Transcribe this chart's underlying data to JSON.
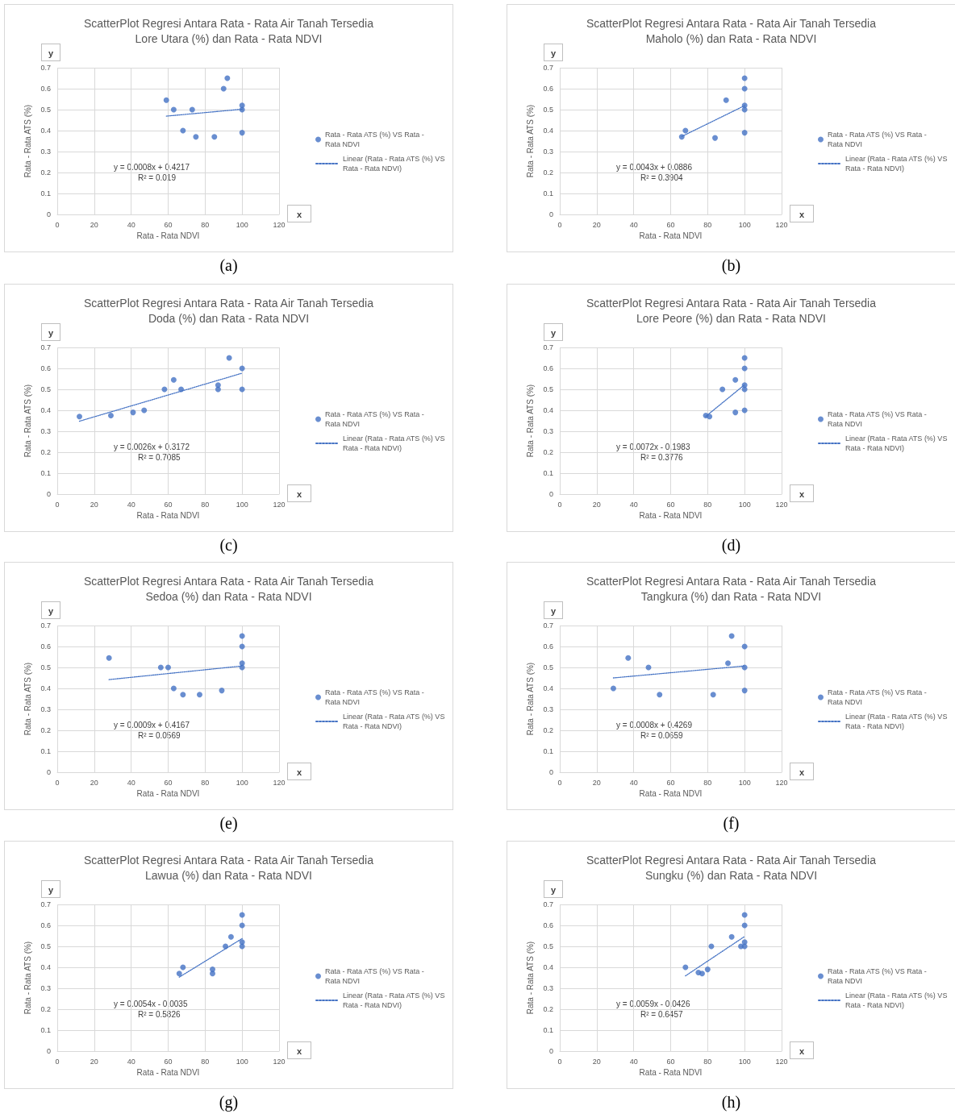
{
  "chart_data": [
    {
      "type": "scatter",
      "title": "ScatterPlot Regresi Antara Rata - Rata Air Tanah Tersedia\nLore Utara (%) dan Rata - Rata NDVI",
      "xlabel": "Rata - Rata NDVI",
      "ylabel": "Rata - Rata ATS (%)",
      "xlim": [
        0,
        120
      ],
      "xticks": [
        0,
        20,
        40,
        60,
        80,
        100,
        120
      ],
      "ylim": [
        0,
        0.7
      ],
      "yticks": [
        0,
        0.1,
        0.2,
        0.3,
        0.4,
        0.5,
        0.6,
        0.7
      ],
      "grid": true,
      "legend": "right",
      "series": [
        {
          "name": "Rata - Rata ATS (%) VS Rata - Rata NDVI",
          "color": "#4472c4",
          "marker": "circle",
          "x": [
            59,
            63,
            68,
            73,
            75,
            85,
            90,
            92,
            100,
            100,
            100
          ],
          "values": [
            0.545,
            0.5,
            0.4,
            0.5,
            0.37,
            0.37,
            0.6,
            0.65,
            0.52,
            0.5,
            0.39
          ]
        },
        {
          "name": "Linear (Rata - Rata ATS (%) VS Rata - Rata NDVI)",
          "type": "line",
          "color": "#4472c4",
          "line_style": "dotted",
          "x": [
            59,
            100
          ],
          "values": [
            0.469,
            0.502
          ]
        }
      ],
      "annotations": [
        "y",
        "x",
        "y = 0.0008x + 0.4217",
        "R² = 0.019",
        "(a)"
      ]
    },
    {
      "type": "scatter",
      "title": "ScatterPlot Regresi Antara Rata - Rata Air Tanah Tersedia\nMaholo (%) dan Rata - Rata NDVI",
      "xlabel": "Rata - Rata NDVI",
      "ylabel": "Rata - Rata ATS (%)",
      "xlim": [
        0,
        120
      ],
      "xticks": [
        0,
        20,
        40,
        60,
        80,
        100,
        120
      ],
      "ylim": [
        0,
        0.7
      ],
      "yticks": [
        0,
        0.1,
        0.2,
        0.3,
        0.4,
        0.5,
        0.6,
        0.7
      ],
      "grid": true,
      "legend": "right",
      "series": [
        {
          "name": "Rata - Rata ATS (%) VS Rata - Rata NDVI",
          "color": "#4472c4",
          "marker": "circle",
          "x": [
            66,
            68,
            84,
            90,
            100,
            100,
            100,
            100,
            100
          ],
          "values": [
            0.37,
            0.4,
            0.365,
            0.545,
            0.65,
            0.6,
            0.52,
            0.5,
            0.39
          ]
        },
        {
          "name": "Linear (Rata - Rata ATS (%) VS Rata - Rata NDVI)",
          "type": "line",
          "color": "#4472c4",
          "line_style": "dotted",
          "x": [
            66,
            100
          ],
          "values": [
            0.372,
            0.519
          ]
        }
      ],
      "annotations": [
        "y",
        "x",
        "y = 0.0043x + 0.0886",
        "R² = 0.3904",
        "(b)"
      ]
    },
    {
      "type": "scatter",
      "title": "ScatterPlot Regresi Antara Rata - Rata Air Tanah Tersedia\nDoda (%) dan Rata - Rata NDVI",
      "xlabel": "Rata - Rata NDVI",
      "ylabel": "Rata - Rata ATS (%)",
      "xlim": [
        0,
        120
      ],
      "xticks": [
        0,
        20,
        40,
        60,
        80,
        100,
        120
      ],
      "ylim": [
        0,
        0.7
      ],
      "yticks": [
        0,
        0.1,
        0.2,
        0.3,
        0.4,
        0.5,
        0.6,
        0.7
      ],
      "grid": true,
      "legend": "right",
      "series": [
        {
          "name": "Rata - Rata ATS (%) VS Rata - Rata NDVI",
          "color": "#4472c4",
          "marker": "circle",
          "x": [
            12,
            29,
            41,
            47,
            58,
            63,
            67,
            87,
            87,
            93,
            100,
            100
          ],
          "values": [
            0.37,
            0.375,
            0.39,
            0.4,
            0.5,
            0.545,
            0.5,
            0.52,
            0.5,
            0.65,
            0.6,
            0.5
          ]
        },
        {
          "name": "Linear (Rata - Rata ATS (%) VS Rata - Rata NDVI)",
          "type": "line",
          "color": "#4472c4",
          "line_style": "dotted",
          "x": [
            12,
            100
          ],
          "values": [
            0.348,
            0.577
          ]
        }
      ],
      "annotations": [
        "y",
        "x",
        "y = 0.0026x + 0.3172",
        "R² = 0.7085",
        "(c)"
      ]
    },
    {
      "type": "scatter",
      "title": "ScatterPlot Regresi Antara Rata - Rata Air Tanah Tersedia\nLore Peore (%) dan Rata - Rata NDVI",
      "xlabel": "Rata - Rata NDVI",
      "ylabel": "Rata - Rata ATS (%)",
      "xlim": [
        0,
        120
      ],
      "xticks": [
        0,
        20,
        40,
        60,
        80,
        100,
        120
      ],
      "ylim": [
        0,
        0.7
      ],
      "yticks": [
        0,
        0.1,
        0.2,
        0.3,
        0.4,
        0.5,
        0.6,
        0.7
      ],
      "grid": true,
      "legend": "right",
      "series": [
        {
          "name": "Rata - Rata ATS (%) VS Rata - Rata NDVI",
          "color": "#4472c4",
          "marker": "circle",
          "x": [
            79,
            81,
            88,
            95,
            95,
            100,
            100,
            100,
            100,
            100
          ],
          "values": [
            0.375,
            0.37,
            0.5,
            0.545,
            0.39,
            0.65,
            0.6,
            0.52,
            0.5,
            0.4
          ]
        },
        {
          "name": "Linear (Rata - Rata ATS (%) VS Rata - Rata NDVI)",
          "type": "line",
          "color": "#4472c4",
          "line_style": "dotted",
          "x": [
            79,
            100
          ],
          "values": [
            0.371,
            0.522
          ]
        }
      ],
      "annotations": [
        "y",
        "x",
        "y = 0.0072x - 0.1983",
        "R² = 0.3776",
        "(d)"
      ]
    },
    {
      "type": "scatter",
      "title": "ScatterPlot Regresi Antara Rata - Rata Air Tanah Tersedia\nSedoa (%) dan Rata - Rata NDVI",
      "xlabel": "Rata - Rata NDVI",
      "ylabel": "Rata - Rata ATS (%)",
      "xlim": [
        0,
        120
      ],
      "xticks": [
        0,
        20,
        40,
        60,
        80,
        100,
        120
      ],
      "ylim": [
        0,
        0.7
      ],
      "yticks": [
        0,
        0.1,
        0.2,
        0.3,
        0.4,
        0.5,
        0.6,
        0.7
      ],
      "grid": true,
      "legend": "right",
      "series": [
        {
          "name": "Rata - Rata ATS (%) VS Rata - Rata NDVI",
          "color": "#4472c4",
          "marker": "circle",
          "x": [
            28,
            56,
            60,
            63,
            68,
            77,
            89,
            100,
            100,
            100,
            100
          ],
          "values": [
            0.545,
            0.5,
            0.5,
            0.4,
            0.37,
            0.37,
            0.39,
            0.65,
            0.6,
            0.52,
            0.5
          ]
        },
        {
          "name": "Linear (Rata - Rata ATS (%) VS Rata - Rata NDVI)",
          "type": "line",
          "color": "#4472c4",
          "line_style": "dotted",
          "x": [
            28,
            100
          ],
          "values": [
            0.442,
            0.507
          ]
        }
      ],
      "annotations": [
        "y",
        "x",
        "y = 0.0009x + 0.4167",
        "R² = 0.0569",
        "(e)"
      ]
    },
    {
      "type": "scatter",
      "title": "ScatterPlot Regresi Antara Rata - Rata Air Tanah Tersedia\nTangkura (%) dan Rata - Rata NDVI",
      "xlabel": "Rata - Rata NDVI",
      "ylabel": "Rata - Rata ATS (%)",
      "xlim": [
        0,
        120
      ],
      "xticks": [
        0,
        20,
        40,
        60,
        80,
        100,
        120
      ],
      "ylim": [
        0,
        0.7
      ],
      "yticks": [
        0,
        0.1,
        0.2,
        0.3,
        0.4,
        0.5,
        0.6,
        0.7
      ],
      "grid": true,
      "legend": "right",
      "series": [
        {
          "name": "Rata - Rata ATS (%) VS Rata - Rata NDVI",
          "color": "#4472c4",
          "marker": "circle",
          "x": [
            29,
            37,
            48,
            54,
            83,
            91,
            93,
            100,
            100,
            100
          ],
          "values": [
            0.4,
            0.545,
            0.5,
            0.37,
            0.37,
            0.52,
            0.65,
            0.6,
            0.5,
            0.39
          ]
        },
        {
          "name": "Linear (Rata - Rata ATS (%) VS Rata - Rata NDVI)",
          "type": "line",
          "color": "#4472c4",
          "line_style": "dotted",
          "x": [
            29,
            100
          ],
          "values": [
            0.45,
            0.507
          ]
        }
      ],
      "annotations": [
        "y",
        "x",
        "y = 0.0008x + 0.4269",
        "R² = 0.0659",
        "(f)"
      ]
    },
    {
      "type": "scatter",
      "title": "ScatterPlot Regresi Antara Rata - Rata Air Tanah Tersedia\nLawua (%) dan Rata - Rata NDVI",
      "xlabel": "Rata - Rata NDVI",
      "ylabel": "Rata - Rata ATS (%)",
      "xlim": [
        0,
        120
      ],
      "xticks": [
        0,
        20,
        40,
        60,
        80,
        100,
        120
      ],
      "ylim": [
        0,
        0.7
      ],
      "yticks": [
        0,
        0.1,
        0.2,
        0.3,
        0.4,
        0.5,
        0.6,
        0.7
      ],
      "grid": true,
      "legend": "right",
      "series": [
        {
          "name": "Rata - Rata ATS (%) VS Rata - Rata NDVI",
          "color": "#4472c4",
          "marker": "circle",
          "x": [
            66,
            68,
            84,
            84,
            91,
            94,
            100,
            100,
            100,
            100
          ],
          "values": [
            0.37,
            0.4,
            0.39,
            0.37,
            0.5,
            0.545,
            0.65,
            0.6,
            0.52,
            0.5
          ]
        },
        {
          "name": "Linear (Rata - Rata ATS (%) VS Rata - Rata NDVI)",
          "type": "line",
          "color": "#4472c4",
          "line_style": "dotted",
          "x": [
            66,
            100
          ],
          "values": [
            0.353,
            0.537
          ]
        }
      ],
      "annotations": [
        "y",
        "x",
        "y = 0.0054x - 0.0035",
        "R² = 0.5826",
        "(g)"
      ]
    },
    {
      "type": "scatter",
      "title": "ScatterPlot Regresi Antara Rata - Rata Air Tanah Tersedia\nSungku (%) dan Rata - Rata NDVI",
      "xlabel": "Rata - Rata NDVI",
      "ylabel": "Rata - Rata ATS (%)",
      "xlim": [
        0,
        120
      ],
      "xticks": [
        0,
        20,
        40,
        60,
        80,
        100,
        120
      ],
      "ylim": [
        0,
        0.7
      ],
      "yticks": [
        0,
        0.1,
        0.2,
        0.3,
        0.4,
        0.5,
        0.6,
        0.7
      ],
      "grid": true,
      "legend": "right",
      "series": [
        {
          "name": "Rata - Rata ATS (%) VS Rata - Rata NDVI",
          "color": "#4472c4",
          "marker": "circle",
          "x": [
            68,
            75,
            77,
            80,
            82,
            93,
            98,
            100,
            100,
            100,
            100
          ],
          "values": [
            0.4,
            0.375,
            0.37,
            0.39,
            0.5,
            0.545,
            0.5,
            0.65,
            0.6,
            0.52,
            0.5
          ]
        },
        {
          "name": "Linear (Rata - Rata ATS (%) VS Rata - Rata NDVI)",
          "type": "line",
          "color": "#4472c4",
          "line_style": "dotted",
          "x": [
            68,
            100
          ],
          "values": [
            0.359,
            0.547
          ]
        }
      ],
      "annotations": [
        "y",
        "x",
        "y = 0.0059x - 0.0426",
        "R² = 0.6457",
        "(h)"
      ]
    }
  ]
}
